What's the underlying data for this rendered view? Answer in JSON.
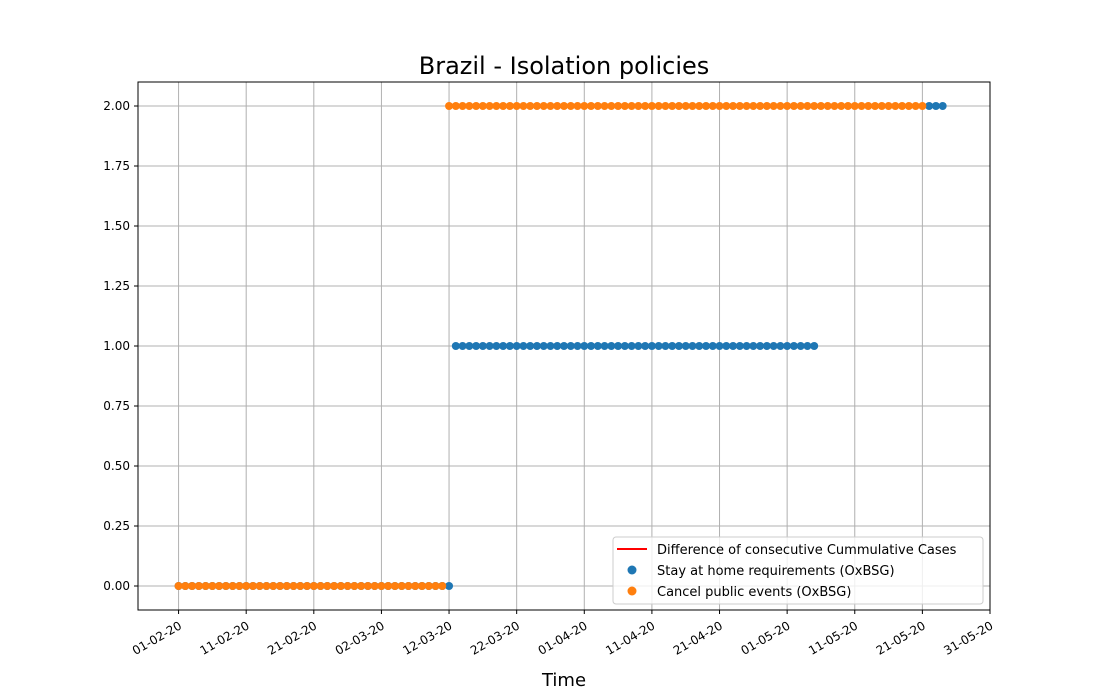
{
  "chart_data": {
    "type": "scatter",
    "title": "Brazil - Isolation policies",
    "xlabel": "Time",
    "ylabel": "",
    "x_start": "2020-02-01",
    "xlim": [
      "2020-01-26",
      "2020-05-31"
    ],
    "ylim": [
      -0.1,
      2.1
    ],
    "grid": true,
    "legend_position": "lower-right",
    "x_ticks": [
      "01-02-20",
      "11-02-20",
      "21-02-20",
      "02-03-20",
      "12-03-20",
      "22-03-20",
      "01-04-20",
      "11-04-20",
      "21-04-20",
      "01-05-20",
      "11-05-20",
      "21-05-20",
      "31-05-20"
    ],
    "y_ticks": [
      "0.00",
      "0.25",
      "0.50",
      "0.75",
      "1.00",
      "1.25",
      "1.50",
      "1.75",
      "2.00"
    ],
    "series": [
      {
        "name": "Difference of consecutive Cummulative Cases",
        "kind": "line",
        "color": "#ff0000",
        "segments": []
      },
      {
        "name": "Stay at home requirements (OxBSG)",
        "kind": "scatter",
        "color": "#1f77b4",
        "segments": [
          {
            "from": "2020-02-01",
            "to": "2020-03-12",
            "value": 0
          },
          {
            "from": "2020-03-13",
            "to": "2020-05-05",
            "value": 1
          },
          {
            "from": "2020-05-22",
            "to": "2020-05-24",
            "value": 2
          }
        ]
      },
      {
        "name": "Cancel public events (OxBSG)",
        "kind": "scatter",
        "color": "#ff7f0e",
        "segments": [
          {
            "from": "2020-02-01",
            "to": "2020-03-11",
            "value": 0
          },
          {
            "from": "2020-03-12",
            "to": "2020-05-21",
            "value": 2
          }
        ]
      }
    ]
  }
}
